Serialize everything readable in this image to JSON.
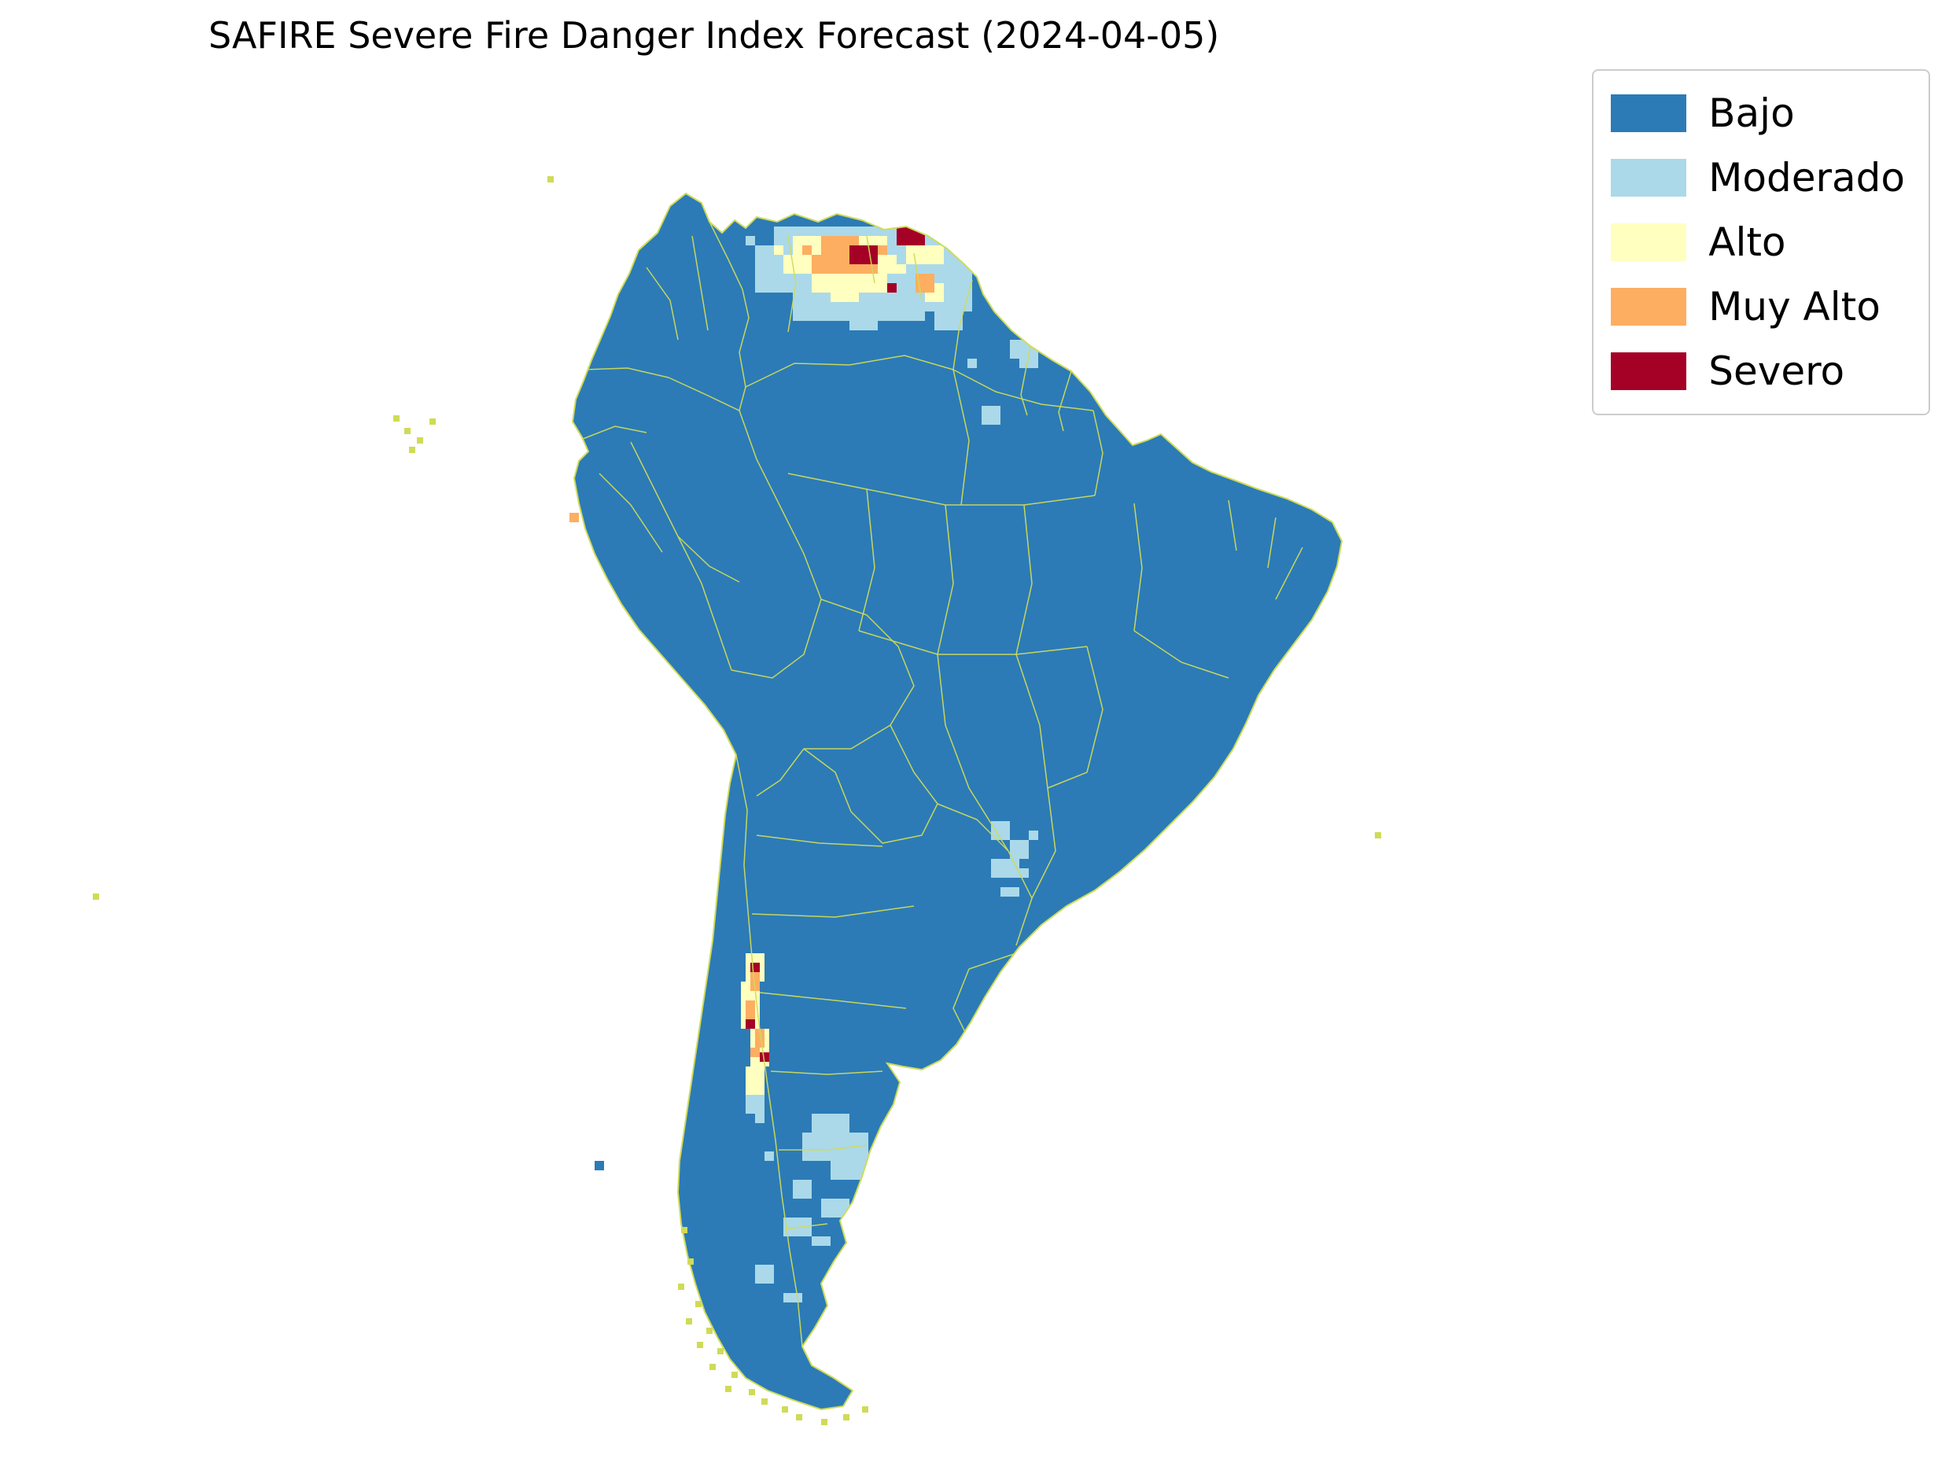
{
  "title": "SAFIRE Severe Fire Danger Index Forecast (2024-04-05)",
  "legend": {
    "items": [
      {
        "label": "Bajo",
        "color": "#2c7bb6"
      },
      {
        "label": "Moderado",
        "color": "#abd9e9"
      },
      {
        "label": "Alto",
        "color": "#ffffbf"
      },
      {
        "label": "Muy Alto",
        "color": "#fdae61"
      },
      {
        "label": "Severo",
        "color": "#a50026"
      }
    ]
  },
  "figure": {
    "background": "#ffffff"
  },
  "map": {
    "region": "South America",
    "boundary_color": "#cfdb58",
    "hotspots": [
      {
        "area": "northern coast (Venezuela / Guyana)",
        "levels": [
          "Moderado",
          "Alto",
          "Muy Alto",
          "Severo"
        ]
      },
      {
        "area": "central Chile strip",
        "levels": [
          "Alto",
          "Muy Alto",
          "Severo"
        ]
      },
      {
        "area": "southern Patagonia",
        "levels": [
          "Moderado"
        ]
      },
      {
        "area": "Paraguay border area",
        "levels": [
          "Moderado"
        ]
      }
    ],
    "patches": [
      [
        984,
        288,
        180,
        36,
        1
      ],
      [
        960,
        312,
        252,
        60,
        1
      ],
      [
        1008,
        372,
        168,
        36,
        1
      ],
      [
        1128,
        288,
        108,
        60,
        1
      ],
      [
        1152,
        348,
        84,
        48,
        1
      ],
      [
        1188,
        396,
        36,
        24,
        1
      ],
      [
        1080,
        408,
        36,
        12,
        1
      ],
      [
        948,
        300,
        12,
        12,
        1
      ],
      [
        1236,
        324,
        12,
        24,
        1
      ],
      [
        1224,
        372,
        12,
        12,
        1
      ],
      [
        1248,
        516,
        24,
        24,
        1
      ],
      [
        1284,
        432,
        36,
        24,
        1
      ],
      [
        1296,
        456,
        24,
        12,
        1
      ],
      [
        1230,
        456,
        12,
        12,
        1
      ],
      [
        1260,
        1044,
        24,
        24,
        1
      ],
      [
        1284,
        1068,
        24,
        24,
        1
      ],
      [
        1260,
        1092,
        36,
        24,
        1
      ],
      [
        1296,
        1104,
        12,
        12,
        1
      ],
      [
        1272,
        1128,
        24,
        12,
        1
      ],
      [
        1308,
        1056,
        12,
        12,
        1
      ],
      [
        948,
        1392,
        24,
        24,
        1
      ],
      [
        960,
        1416,
        12,
        12,
        1
      ],
      [
        1032,
        1416,
        48,
        24,
        1
      ],
      [
        1020,
        1440,
        84,
        36,
        1
      ],
      [
        1056,
        1476,
        48,
        24,
        1
      ],
      [
        1008,
        1500,
        24,
        24,
        1
      ],
      [
        1044,
        1524,
        36,
        24,
        1
      ],
      [
        996,
        1548,
        36,
        24,
        1
      ],
      [
        1092,
        1512,
        12,
        12,
        1
      ],
      [
        972,
        1464,
        12,
        12,
        1
      ],
      [
        960,
        1608,
        24,
        24,
        1
      ],
      [
        996,
        1644,
        24,
        12,
        1
      ],
      [
        1032,
        1572,
        24,
        12,
        1
      ],
      [
        1008,
        300,
        120,
        24,
        2
      ],
      [
        996,
        324,
        144,
        24,
        2
      ],
      [
        1032,
        348,
        96,
        24,
        2
      ],
      [
        1152,
        312,
        48,
        24,
        2
      ],
      [
        1176,
        360,
        24,
        24,
        2
      ],
      [
        984,
        312,
        12,
        12,
        2
      ],
      [
        1056,
        372,
        36,
        12,
        2
      ],
      [
        1140,
        336,
        12,
        12,
        2
      ],
      [
        948,
        1212,
        24,
        36,
        2
      ],
      [
        942,
        1248,
        24,
        60,
        2
      ],
      [
        954,
        1308,
        24,
        48,
        2
      ],
      [
        948,
        1356,
        24,
        36,
        2
      ],
      [
        1044,
        300,
        48,
        24,
        3
      ],
      [
        1032,
        324,
        84,
        24,
        3
      ],
      [
        1104,
        312,
        24,
        12,
        3
      ],
      [
        1164,
        348,
        24,
        24,
        3
      ],
      [
        1020,
        312,
        12,
        12,
        3
      ],
      [
        954,
        1236,
        12,
        24,
        3
      ],
      [
        948,
        1272,
        12,
        36,
        3
      ],
      [
        960,
        1308,
        12,
        24,
        3
      ],
      [
        954,
        1332,
        12,
        12,
        3
      ],
      [
        1080,
        312,
        36,
        24,
        4
      ],
      [
        1140,
        288,
        36,
        24,
        4
      ],
      [
        1128,
        360,
        12,
        12,
        4
      ],
      [
        954,
        1224,
        12,
        12,
        4
      ],
      [
        948,
        1296,
        12,
        12,
        4
      ],
      [
        966,
        1338,
        12,
        12,
        4
      ]
    ],
    "offshore_cells": [
      [
        756,
        1476,
        12,
        12,
        0
      ],
      [
        724,
        652,
        12,
        12,
        3
      ]
    ],
    "islets": [
      [
        500,
        528
      ],
      [
        514,
        544
      ],
      [
        530,
        556
      ],
      [
        546,
        532
      ],
      [
        520,
        568
      ],
      [
        118,
        1136
      ],
      [
        1748,
        1058
      ],
      [
        696,
        224
      ],
      [
        866,
        1560
      ],
      [
        874,
        1600
      ],
      [
        862,
        1632
      ],
      [
        884,
        1654
      ],
      [
        872,
        1676
      ],
      [
        898,
        1688
      ],
      [
        886,
        1706
      ],
      [
        912,
        1714
      ],
      [
        902,
        1734
      ],
      [
        930,
        1744
      ],
      [
        922,
        1762
      ],
      [
        952,
        1766
      ],
      [
        968,
        1778
      ],
      [
        994,
        1788
      ],
      [
        1012,
        1798
      ],
      [
        1044,
        1804
      ],
      [
        1072,
        1798
      ],
      [
        1096,
        1788
      ]
    ]
  }
}
